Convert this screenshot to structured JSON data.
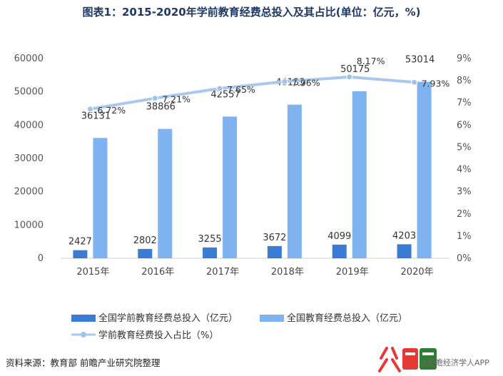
{
  "title": "图表1：2015-2020年学前教育经费总投入及其占比(单位：亿元，%)",
  "source": "资料来源：教育部 前瞻产业研究院整理",
  "watermark": {
    "credit": "@前瞻经济学人APP"
  },
  "chart_data": {
    "type": "bar",
    "categories": [
      "2015年",
      "2016年",
      "2017年",
      "2018年",
      "2019年",
      "2020年"
    ],
    "series": [
      {
        "name": "全国学前教育经费总投入（亿元）",
        "type": "bar",
        "axis": "left",
        "color": "#3a7bd5",
        "values": [
          2427,
          2802,
          3255,
          3672,
          4099,
          4203
        ],
        "labels": [
          "2427",
          "2802",
          "3255",
          "3672",
          "4099",
          "4203"
        ]
      },
      {
        "name": "全国教育经费总投入（亿元）",
        "type": "bar",
        "axis": "left",
        "color": "#7fb2f0",
        "values": [
          36131,
          38866,
          42557,
          46135,
          50175,
          53014
        ],
        "labels": [
          "36131",
          "38866",
          "42557",
          "46135",
          "50175",
          "53014"
        ]
      },
      {
        "name": "学前教育经费投入占比（%）",
        "type": "line",
        "axis": "right",
        "color": "#a9c8ef",
        "values": [
          6.72,
          7.21,
          7.65,
          7.96,
          8.17,
          7.93
        ],
        "labels": [
          "6.72%",
          "7.21%",
          "7.65%",
          "7.96%",
          "8.17%",
          "7.93%"
        ]
      }
    ],
    "yleft": {
      "lim": [
        0,
        60000
      ],
      "ticks": [
        "0",
        "10000",
        "20000",
        "30000",
        "40000",
        "50000",
        "60000"
      ]
    },
    "yright": {
      "lim": [
        0,
        9
      ],
      "ticks": [
        "0%",
        "1%",
        "2%",
        "3%",
        "4%",
        "5%",
        "6%",
        "7%",
        "8%",
        "9%"
      ]
    },
    "grid": false,
    "legend": "bottom"
  }
}
